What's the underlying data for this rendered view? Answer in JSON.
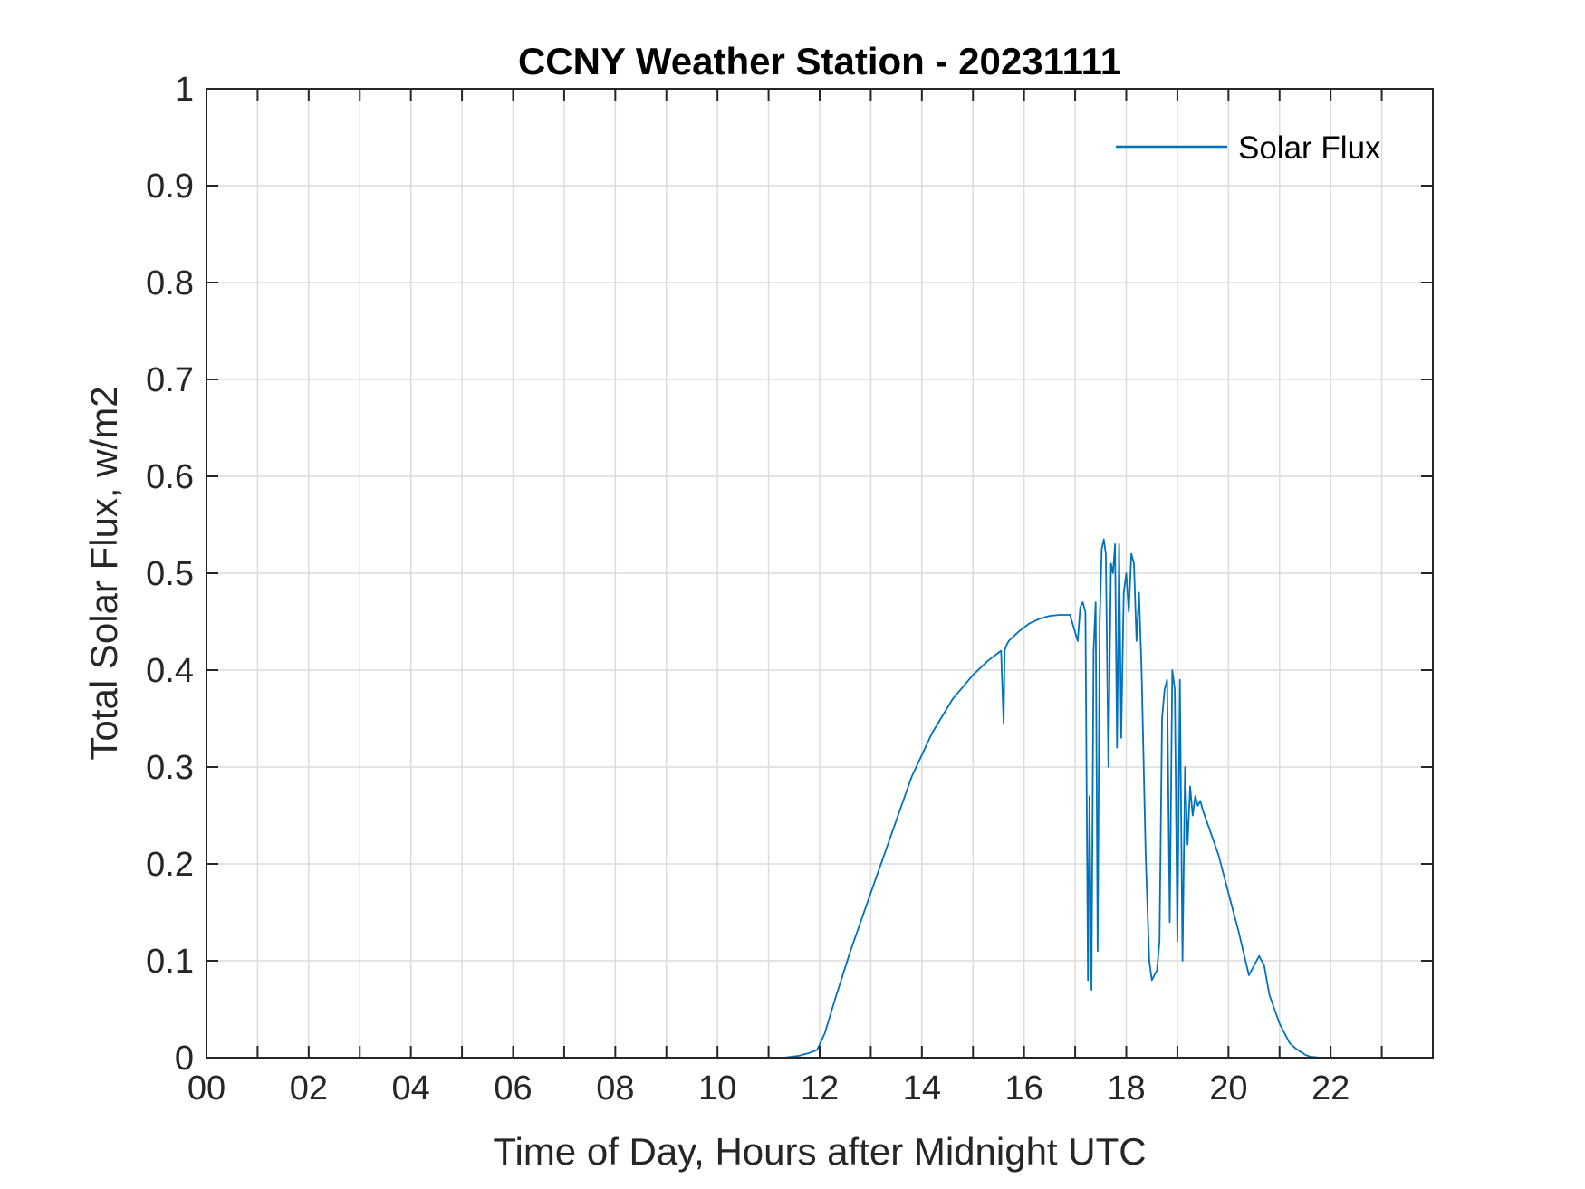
{
  "chart_data": {
    "type": "line",
    "title": "CCNY Weather Station - 20231111",
    "xlabel": "Time of Day, Hours after Midnight UTC",
    "ylabel": "Total Solar Flux, w/m2",
    "xlim": [
      0,
      24
    ],
    "ylim": [
      0,
      1
    ],
    "xticks": [
      0,
      2,
      4,
      6,
      8,
      10,
      12,
      14,
      16,
      18,
      20,
      22
    ],
    "xtick_labels": [
      "00",
      "02",
      "04",
      "06",
      "08",
      "10",
      "12",
      "14",
      "16",
      "18",
      "20",
      "22"
    ],
    "yticks": [
      0,
      0.1,
      0.2,
      0.3,
      0.4,
      0.5,
      0.6,
      0.7,
      0.8,
      0.9,
      1
    ],
    "ytick_labels": [
      "0",
      "0.1",
      "0.2",
      "0.3",
      "0.4",
      "0.5",
      "0.6",
      "0.7",
      "0.8",
      "0.9",
      "1"
    ],
    "grid": true,
    "legend_position": "top-right",
    "line_color": "#0072BD",
    "series": [
      {
        "name": "Solar Flux",
        "x": [
          0,
          11.3,
          11.6,
          11.8,
          11.95,
          12.1,
          12.3,
          12.6,
          13.0,
          13.4,
          13.8,
          14.2,
          14.6,
          15.0,
          15.3,
          15.55,
          15.6,
          15.62,
          15.65,
          15.7,
          15.9,
          16.1,
          16.3,
          16.5,
          16.7,
          16.9,
          17.05,
          17.1,
          17.15,
          17.2,
          17.25,
          17.28,
          17.32,
          17.36,
          17.4,
          17.44,
          17.48,
          17.52,
          17.56,
          17.6,
          17.65,
          17.7,
          17.74,
          17.78,
          17.82,
          17.86,
          17.9,
          17.95,
          18.0,
          18.05,
          18.1,
          18.15,
          18.2,
          18.25,
          18.3,
          18.38,
          18.45,
          18.5,
          18.55,
          18.6,
          18.65,
          18.7,
          18.75,
          18.8,
          18.85,
          18.9,
          18.95,
          19.0,
          19.05,
          19.1,
          19.15,
          19.2,
          19.25,
          19.3,
          19.35,
          19.4,
          19.45,
          19.5,
          19.6,
          19.8,
          20.0,
          20.2,
          20.4,
          20.6,
          20.7,
          20.75,
          20.8,
          20.9,
          21.0,
          21.2,
          21.35,
          21.45,
          21.5,
          21.6,
          21.8,
          22.0,
          22.2,
          23.95
        ],
        "y": [
          0,
          0,
          0.002,
          0.005,
          0.008,
          0.025,
          0.06,
          0.11,
          0.17,
          0.23,
          0.29,
          0.335,
          0.37,
          0.395,
          0.41,
          0.42,
          0.345,
          0.42,
          0.425,
          0.43,
          0.44,
          0.448,
          0.453,
          0.456,
          0.457,
          0.457,
          0.43,
          0.465,
          0.47,
          0.46,
          0.08,
          0.27,
          0.07,
          0.42,
          0.47,
          0.11,
          0.45,
          0.525,
          0.535,
          0.52,
          0.3,
          0.51,
          0.5,
          0.53,
          0.32,
          0.53,
          0.33,
          0.48,
          0.5,
          0.46,
          0.52,
          0.51,
          0.43,
          0.48,
          0.4,
          0.21,
          0.1,
          0.08,
          0.085,
          0.09,
          0.12,
          0.35,
          0.38,
          0.39,
          0.14,
          0.4,
          0.38,
          0.12,
          0.39,
          0.1,
          0.3,
          0.22,
          0.28,
          0.25,
          0.27,
          0.26,
          0.265,
          0.255,
          0.24,
          0.21,
          0.17,
          0.13,
          0.085,
          0.105,
          0.095,
          0.08,
          0.065,
          0.05,
          0.035,
          0.015,
          0.008,
          0.005,
          0.003,
          0.001,
          0,
          0,
          0,
          0
        ]
      }
    ]
  }
}
